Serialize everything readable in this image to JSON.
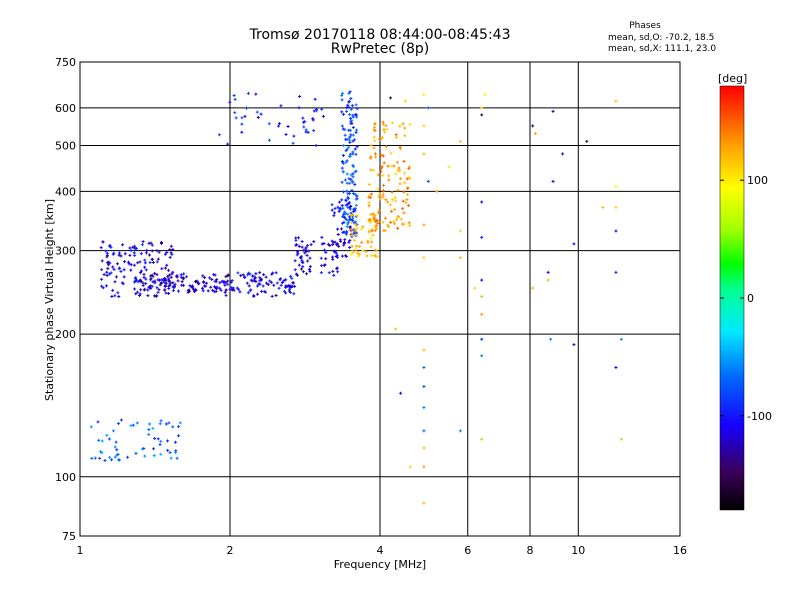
{
  "chart_data": {
    "type": "scatter",
    "title": "Tromsø 20170118 08:44:00-08:45:43",
    "subtitle": "RwPretec (8p)",
    "xlabel": "Frequency [MHz]",
    "ylabel": "Stationary phase Virtual Height [km]",
    "x_scale": "log",
    "y_scale": "log",
    "xlim": [
      1,
      16
    ],
    "ylim": [
      75,
      750
    ],
    "xticks": [
      "1",
      "2",
      "4",
      "6",
      "8",
      "10",
      "16"
    ],
    "yticks": [
      "75",
      "100",
      "200",
      "300",
      "400",
      "500",
      "600",
      "750"
    ],
    "grid": true,
    "colorbar": {
      "label": "[deg]",
      "range": [
        -180,
        180
      ],
      "ticks": [
        "100",
        "0",
        "-100"
      ]
    },
    "stats": {
      "title": "Phases",
      "line1": "mean, sd,O: -70.2, 18.5",
      "line2": "mean, sd,X: 111.1, 23.0"
    },
    "clusters": [
      {
        "x_range": [
          1.1,
          1.55
        ],
        "y_range": [
          240,
          315
        ],
        "phase": -110,
        "count": 150
      },
      {
        "x_range": [
          1.3,
          2.0
        ],
        "y_range": [
          245,
          268
        ],
        "phase": -120,
        "count": 120
      },
      {
        "x_range": [
          1.95,
          2.7
        ],
        "y_range": [
          240,
          270
        ],
        "phase": -110,
        "count": 90
      },
      {
        "x_range": [
          2.7,
          3.3
        ],
        "y_range": [
          265,
          320
        ],
        "phase": -115,
        "count": 70
      },
      {
        "x_range": [
          3.2,
          3.5
        ],
        "y_range": [
          290,
          380
        ],
        "phase": -110,
        "count": 50
      },
      {
        "x_range": [
          3.35,
          3.6
        ],
        "y_range": [
          320,
          650
        ],
        "phase": -80,
        "count": 150
      },
      {
        "x_range": [
          3.5,
          3.95
        ],
        "y_range": [
          290,
          360
        ],
        "phase": 120,
        "count": 60
      },
      {
        "x_range": [
          3.8,
          4.6
        ],
        "y_range": [
          330,
          560
        ],
        "phase": 130,
        "count": 130
      },
      {
        "x_range": [
          1.9,
          3.1
        ],
        "y_range": [
          490,
          650
        ],
        "phase": -100,
        "count": 45
      },
      {
        "x_range": [
          1.05,
          1.6
        ],
        "y_range": [
          108,
          132
        ],
        "phase": -70,
        "count": 60
      }
    ],
    "points": [
      {
        "x": 4.9,
        "y": 550,
        "phase": 110
      },
      {
        "x": 4.9,
        "y": 480,
        "phase": 120
      },
      {
        "x": 4.9,
        "y": 340,
        "phase": 130
      },
      {
        "x": 4.9,
        "y": 290,
        "phase": 110
      },
      {
        "x": 4.9,
        "y": 185,
        "phase": 120
      },
      {
        "x": 4.9,
        "y": 170,
        "phase": -70
      },
      {
        "x": 4.9,
        "y": 155,
        "phase": -80
      },
      {
        "x": 4.9,
        "y": 140,
        "phase": -60
      },
      {
        "x": 4.9,
        "y": 125,
        "phase": -70
      },
      {
        "x": 4.9,
        "y": 115,
        "phase": 120
      },
      {
        "x": 4.9,
        "y": 105,
        "phase": 130
      },
      {
        "x": 4.9,
        "y": 88,
        "phase": 120
      },
      {
        "x": 4.9,
        "y": 640,
        "phase": 100
      },
      {
        "x": 4.5,
        "y": 620,
        "phase": 110
      },
      {
        "x": 4.2,
        "y": 630,
        "phase": -150
      },
      {
        "x": 4.4,
        "y": 150,
        "phase": -110
      },
      {
        "x": 4.6,
        "y": 105,
        "phase": 110
      },
      {
        "x": 4.3,
        "y": 205,
        "phase": 120
      },
      {
        "x": 5.8,
        "y": 510,
        "phase": 120
      },
      {
        "x": 5.8,
        "y": 330,
        "phase": 110
      },
      {
        "x": 5.8,
        "y": 290,
        "phase": 120
      },
      {
        "x": 5.8,
        "y": 125,
        "phase": -60
      },
      {
        "x": 5.5,
        "y": 450,
        "phase": 100
      },
      {
        "x": 5.2,
        "y": 400,
        "phase": 130
      },
      {
        "x": 6.4,
        "y": 600,
        "phase": 110
      },
      {
        "x": 6.4,
        "y": 580,
        "phase": -140
      },
      {
        "x": 6.4,
        "y": 380,
        "phase": -120
      },
      {
        "x": 6.4,
        "y": 320,
        "phase": -100
      },
      {
        "x": 6.4,
        "y": 260,
        "phase": -110
      },
      {
        "x": 6.4,
        "y": 240,
        "phase": 120
      },
      {
        "x": 6.4,
        "y": 220,
        "phase": 130
      },
      {
        "x": 6.4,
        "y": 195,
        "phase": -90
      },
      {
        "x": 6.4,
        "y": 180,
        "phase": -60
      },
      {
        "x": 6.4,
        "y": 120,
        "phase": 120
      },
      {
        "x": 6.5,
        "y": 640,
        "phase": 100
      },
      {
        "x": 6.2,
        "y": 250,
        "phase": 110
      },
      {
        "x": 8.1,
        "y": 550,
        "phase": -150
      },
      {
        "x": 8.1,
        "y": 250,
        "phase": 120
      },
      {
        "x": 8.2,
        "y": 530,
        "phase": 130
      },
      {
        "x": 8.7,
        "y": 270,
        "phase": -110
      },
      {
        "x": 8.7,
        "y": 260,
        "phase": 120
      },
      {
        "x": 8.9,
        "y": 590,
        "phase": -150
      },
      {
        "x": 8.9,
        "y": 420,
        "phase": -130
      },
      {
        "x": 8.8,
        "y": 195,
        "phase": -60
      },
      {
        "x": 9.3,
        "y": 480,
        "phase": -120
      },
      {
        "x": 9.8,
        "y": 310,
        "phase": -110
      },
      {
        "x": 9.8,
        "y": 190,
        "phase": -130
      },
      {
        "x": 10.4,
        "y": 510,
        "phase": -150
      },
      {
        "x": 11.2,
        "y": 370,
        "phase": 120
      },
      {
        "x": 11.9,
        "y": 620,
        "phase": 120
      },
      {
        "x": 11.9,
        "y": 410,
        "phase": 100
      },
      {
        "x": 11.9,
        "y": 370,
        "phase": 110
      },
      {
        "x": 11.9,
        "y": 330,
        "phase": -120
      },
      {
        "x": 11.9,
        "y": 270,
        "phase": -100
      },
      {
        "x": 11.9,
        "y": 170,
        "phase": -110
      },
      {
        "x": 12.2,
        "y": 195,
        "phase": -60
      },
      {
        "x": 12.2,
        "y": 120,
        "phase": 120
      },
      {
        "x": 5.0,
        "y": 600,
        "phase": -70
      },
      {
        "x": 5.0,
        "y": 420,
        "phase": -80
      }
    ]
  }
}
